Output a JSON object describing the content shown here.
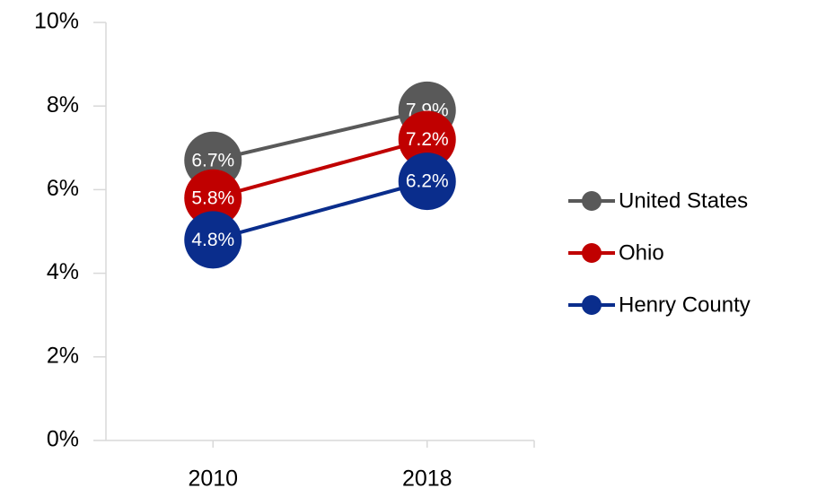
{
  "chart_data": {
    "type": "line",
    "categories": [
      "2010",
      "2018"
    ],
    "series": [
      {
        "name": "United States",
        "color": "#595959",
        "values": [
          6.7,
          7.9
        ],
        "value_labels": [
          "6.7%",
          "7.9%"
        ]
      },
      {
        "name": "Ohio",
        "color": "#c00000",
        "values": [
          5.8,
          7.2
        ],
        "value_labels": [
          "5.8%",
          "7.2%"
        ]
      },
      {
        "name": "Henry County",
        "color": "#0a2d8c",
        "values": [
          4.8,
          6.2
        ],
        "value_labels": [
          "4.8%",
          "6.2%"
        ]
      }
    ],
    "ylim": [
      0,
      10
    ],
    "yticks": [
      {
        "value": 0,
        "label": "0%"
      },
      {
        "value": 2,
        "label": "2%"
      },
      {
        "value": 4,
        "label": "4%"
      },
      {
        "value": 6,
        "label": "6%"
      },
      {
        "value": 8,
        "label": "8%"
      },
      {
        "value": 10,
        "label": "10%"
      }
    ],
    "grid": false,
    "legend": "right"
  }
}
